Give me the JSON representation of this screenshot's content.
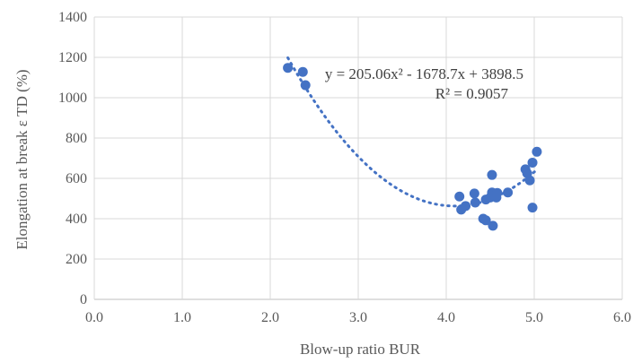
{
  "chart_data": {
    "type": "scatter",
    "title": "",
    "xlabel": "Blow-up ratio BUR",
    "ylabel": "Elongation at break ε TD (%)",
    "xlim": [
      0,
      6
    ],
    "ylim": [
      0,
      1400
    ],
    "x_ticks": [
      "0.0",
      "1.0",
      "2.0",
      "3.0",
      "4.0",
      "5.0",
      "6.0"
    ],
    "y_ticks": [
      "0",
      "200",
      "400",
      "600",
      "800",
      "1000",
      "1200",
      "1400"
    ],
    "grid": true,
    "legend": "none",
    "color": "#4472c4",
    "points": [
      [
        2.2,
        1148
      ],
      [
        2.37,
        1128
      ],
      [
        2.4,
        1062
      ],
      [
        4.15,
        510
      ],
      [
        4.17,
        445
      ],
      [
        4.22,
        463
      ],
      [
        4.32,
        525
      ],
      [
        4.33,
        480
      ],
      [
        4.42,
        400
      ],
      [
        4.45,
        392
      ],
      [
        4.45,
        495
      ],
      [
        4.5,
        505
      ],
      [
        4.52,
        617
      ],
      [
        4.52,
        530
      ],
      [
        4.53,
        365
      ],
      [
        4.55,
        515
      ],
      [
        4.57,
        505
      ],
      [
        4.58,
        528
      ],
      [
        4.7,
        530
      ],
      [
        4.9,
        645
      ],
      [
        4.92,
        625
      ],
      [
        4.95,
        590
      ],
      [
        4.98,
        678
      ],
      [
        4.98,
        455
      ],
      [
        5.03,
        732
      ]
    ],
    "trendline": {
      "type": "polynomial",
      "order": 2,
      "coefficients": [
        205.06,
        -1678.7,
        3898.5
      ],
      "x_range": [
        2.2,
        5.03
      ],
      "equation": "y = 205.06x² - 1678.7x + 3898.5",
      "r_squared": "R² = 0.9057"
    }
  }
}
